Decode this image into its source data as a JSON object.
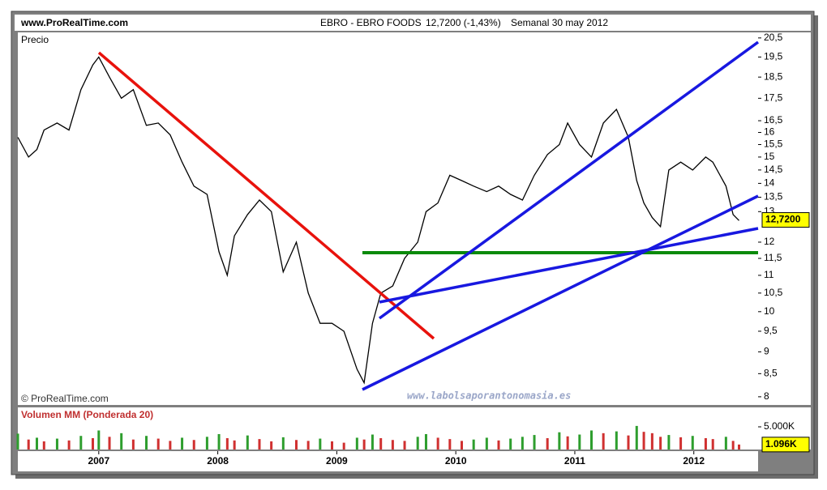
{
  "header": {
    "site": "www.ProRealTime.com",
    "symbol": "EBRO - EBRO FOODS",
    "quote": "12,7200 (-1,43%)",
    "period": "Semanal  30 may 2012"
  },
  "footer": {
    "copyright": "© ProRealTime.com",
    "watermark": "www.labolsaporantonomasia.es"
  },
  "chart_data": [
    {
      "type": "line",
      "title": "Precio",
      "log": true,
      "color": "#000000",
      "x": [
        2006.32,
        2006.41,
        2006.48,
        2006.54,
        2006.65,
        2006.75,
        2006.85,
        2006.95,
        2007.0,
        2007.09,
        2007.19,
        2007.29,
        2007.4,
        2007.5,
        2007.6,
        2007.7,
        2007.8,
        2007.91,
        2008.01,
        2008.08,
        2008.14,
        2008.25,
        2008.35,
        2008.45,
        2008.55,
        2008.66,
        2008.76,
        2008.86,
        2008.96,
        2009.06,
        2009.17,
        2009.23,
        2009.3,
        2009.37,
        2009.47,
        2009.57,
        2009.68,
        2009.75,
        2009.85,
        2009.95,
        2010.05,
        2010.15,
        2010.26,
        2010.36,
        2010.46,
        2010.56,
        2010.66,
        2010.77,
        2010.87,
        2010.94,
        2011.04,
        2011.14,
        2011.24,
        2011.35,
        2011.45,
        2011.52,
        2011.58,
        2011.65,
        2011.72,
        2011.79,
        2011.89,
        2011.99,
        2012.1,
        2012.16,
        2012.27,
        2012.33,
        2012.38
      ],
      "values": [
        15.8,
        15.0,
        15.3,
        16.1,
        16.4,
        16.1,
        17.9,
        19.1,
        19.5,
        18.5,
        17.5,
        17.9,
        16.3,
        16.4,
        15.9,
        14.8,
        13.9,
        13.6,
        11.7,
        11.0,
        12.2,
        12.9,
        13.4,
        13.0,
        11.1,
        12.0,
        10.5,
        9.7,
        9.7,
        9.5,
        8.6,
        8.3,
        9.7,
        10.5,
        10.7,
        11.5,
        12.0,
        13.0,
        13.3,
        14.3,
        14.1,
        13.9,
        13.7,
        13.9,
        13.6,
        13.4,
        14.3,
        15.1,
        15.5,
        16.4,
        15.5,
        15.0,
        16.4,
        17.0,
        15.8,
        14.1,
        13.3,
        12.8,
        12.5,
        14.5,
        14.8,
        14.5,
        15.0,
        14.8,
        13.9,
        12.9,
        12.7
      ],
      "xlim": [
        2006.32,
        2012.54
      ],
      "ylim": [
        7.83,
        20.8
      ],
      "yticks": [
        8,
        {
          "value": 8.5,
          "label": "8,5"
        },
        9,
        {
          "value": 9.5,
          "label": "9,5"
        },
        10,
        {
          "value": 10.5,
          "label": "10,5"
        },
        11,
        {
          "value": 11.5,
          "label": "11,5"
        },
        12,
        13,
        {
          "value": 13.5,
          "label": "13,5"
        },
        14,
        {
          "value": 14.5,
          "label": "14,5"
        },
        15,
        {
          "value": 15.5,
          "label": "15,5"
        },
        16,
        {
          "value": 16.5,
          "label": "16,5"
        },
        {
          "value": 17.5,
          "label": "17,5"
        },
        {
          "value": 18.5,
          "label": "18,5"
        },
        {
          "value": 19.5,
          "label": "19,5"
        },
        {
          "value": 20.5,
          "label": "20,5"
        }
      ],
      "last_value": 12.72,
      "last_label": "12,7200"
    },
    {
      "type": "bar",
      "title": "Volumen MM (Ponderada 20)",
      "up_color": "#2e9e2e",
      "down_color": "#d03030",
      "x": [
        2006.32,
        2006.41,
        2006.48,
        2006.54,
        2006.65,
        2006.75,
        2006.85,
        2006.95,
        2007.0,
        2007.09,
        2007.19,
        2007.29,
        2007.4,
        2007.5,
        2007.6,
        2007.7,
        2007.8,
        2007.91,
        2008.01,
        2008.08,
        2008.14,
        2008.25,
        2008.35,
        2008.45,
        2008.55,
        2008.66,
        2008.76,
        2008.86,
        2008.96,
        2009.06,
        2009.17,
        2009.23,
        2009.3,
        2009.37,
        2009.47,
        2009.57,
        2009.68,
        2009.75,
        2009.85,
        2009.95,
        2010.05,
        2010.15,
        2010.26,
        2010.36,
        2010.46,
        2010.56,
        2010.66,
        2010.77,
        2010.87,
        2010.94,
        2011.04,
        2011.14,
        2011.24,
        2011.35,
        2011.45,
        2011.52,
        2011.58,
        2011.65,
        2011.72,
        2011.79,
        2011.89,
        2011.99,
        2012.1,
        2012.16,
        2012.27,
        2012.33,
        2012.38
      ],
      "values": [
        3500,
        2200,
        2600,
        1800,
        2400,
        2000,
        3000,
        2500,
        4200,
        2800,
        3600,
        2200,
        3000,
        2400,
        1900,
        2600,
        2100,
        2800,
        3400,
        2500,
        2000,
        3100,
        2300,
        1800,
        2700,
        2100,
        1900,
        2400,
        1800,
        1500,
        2600,
        2200,
        3300,
        2500,
        2100,
        1900,
        2800,
        3400,
        2600,
        2300,
        1900,
        2200,
        2600,
        2000,
        2400,
        2800,
        3200,
        2500,
        3800,
        2900,
        3300,
        4200,
        3600,
        4000,
        3100,
        5200,
        3900,
        3600,
        2800,
        3200,
        2700,
        3000,
        2500,
        2300,
        2800,
        1900,
        1096
      ],
      "xlim": [
        2006.32,
        2012.54
      ],
      "ylim": [
        0,
        9290
      ],
      "yticks": [
        {
          "value": 5000,
          "label": "5.000K"
        }
      ],
      "xticks": [
        2007,
        2008,
        2009,
        2010,
        2011,
        2012
      ],
      "last_value": 1096,
      "last_label": "1.096K"
    }
  ]
}
